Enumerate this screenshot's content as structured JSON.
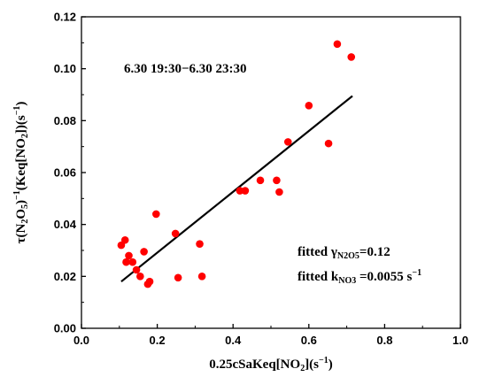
{
  "chart_data": {
    "type": "scatter",
    "xlim": [
      0.0,
      1.0
    ],
    "ylim": [
      0.0,
      0.12
    ],
    "xticks": [
      "0.0",
      "0.2",
      "0.4",
      "0.6",
      "0.8",
      "1.0"
    ],
    "yticks": [
      "0.00",
      "0.02",
      "0.04",
      "0.06",
      "0.08",
      "0.10",
      "0.12"
    ],
    "xlabel": "0.25cSaKeq[NO2](s-1)",
    "ylabel": "τ(N2O5)-1(Keq[NO2])(s-1)",
    "grid": false,
    "colors": {
      "points": "#ff0000",
      "fit_line": "#000000",
      "axes": "#000000"
    },
    "annotations": {
      "time_range": "6.30 19:30−6.30 23:30",
      "fitted_gamma_label": "fitted γ",
      "fitted_gamma_sub": "N2O5",
      "fitted_gamma_value": "=0.12",
      "fitted_k_label": "fitted k",
      "fitted_k_sub": "NO3",
      "fitted_k_value": " =0.0055 s",
      "fitted_k_exp": "−1"
    },
    "fit_line": {
      "x": [
        0.105,
        0.715
      ],
      "y": [
        0.018,
        0.0895
      ]
    },
    "points": {
      "x": [
        0.105,
        0.115,
        0.118,
        0.125,
        0.135,
        0.145,
        0.155,
        0.165,
        0.175,
        0.18,
        0.197,
        0.248,
        0.255,
        0.312,
        0.318,
        0.418,
        0.432,
        0.472,
        0.515,
        0.522,
        0.545,
        0.6,
        0.652,
        0.675,
        0.712
      ],
      "y": [
        0.032,
        0.034,
        0.0255,
        0.028,
        0.0255,
        0.0225,
        0.02,
        0.0295,
        0.017,
        0.018,
        0.044,
        0.0365,
        0.0195,
        0.0325,
        0.02,
        0.053,
        0.053,
        0.057,
        0.057,
        0.0525,
        0.0718,
        0.0858,
        0.0712,
        0.1095,
        0.1045
      ]
    }
  }
}
